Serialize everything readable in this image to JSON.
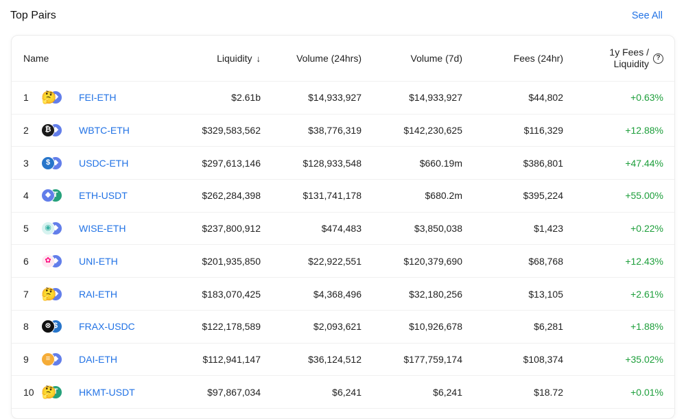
{
  "header": {
    "title": "Top Pairs",
    "see_all": "See All"
  },
  "columns": {
    "name": "Name",
    "liquidity": "Liquidity",
    "sort_arrow": "↓",
    "volume_24h": "Volume (24hrs)",
    "volume_7d": "Volume (7d)",
    "fees_24h": "Fees (24hr)",
    "fees_liq_line1": "1y Fees /",
    "fees_liq_line2": "Liquidity",
    "help_glyph": "?"
  },
  "rows": [
    {
      "index": "1",
      "pair": "FEI-ETH",
      "liquidity": "$2.61b",
      "volume_24h": "$14,933,927",
      "volume_7d": "$14,933,927",
      "fees_24h": "$44,802",
      "fees_liq": "+0.63%",
      "icon_a": "thinking-emoji-icon",
      "icon_b": "eth-icon"
    },
    {
      "index": "2",
      "pair": "WBTC-ETH",
      "liquidity": "$329,583,562",
      "volume_24h": "$38,776,319",
      "volume_7d": "$142,230,625",
      "fees_24h": "$116,329",
      "fees_liq": "+12.88%",
      "icon_a": "wbtc-icon",
      "icon_b": "eth-icon"
    },
    {
      "index": "3",
      "pair": "USDC-ETH",
      "liquidity": "$297,613,146",
      "volume_24h": "$128,933,548",
      "volume_7d": "$660.19m",
      "fees_24h": "$386,801",
      "fees_liq": "+47.44%",
      "icon_a": "usdc-icon",
      "icon_b": "eth-icon"
    },
    {
      "index": "4",
      "pair": "ETH-USDT",
      "liquidity": "$262,284,398",
      "volume_24h": "$131,741,178",
      "volume_7d": "$680.2m",
      "fees_24h": "$395,224",
      "fees_liq": "+55.00%",
      "icon_a": "eth-icon",
      "icon_b": "usdt-icon"
    },
    {
      "index": "5",
      "pair": "WISE-ETH",
      "liquidity": "$237,800,912",
      "volume_24h": "$474,483",
      "volume_7d": "$3,850,038",
      "fees_24h": "$1,423",
      "fees_liq": "+0.22%",
      "icon_a": "wise-icon",
      "icon_b": "eth-icon"
    },
    {
      "index": "6",
      "pair": "UNI-ETH",
      "liquidity": "$201,935,850",
      "volume_24h": "$22,922,551",
      "volume_7d": "$120,379,690",
      "fees_24h": "$68,768",
      "fees_liq": "+12.43%",
      "icon_a": "uni-icon",
      "icon_b": "eth-icon"
    },
    {
      "index": "7",
      "pair": "RAI-ETH",
      "liquidity": "$183,070,425",
      "volume_24h": "$4,368,496",
      "volume_7d": "$32,180,256",
      "fees_24h": "$13,105",
      "fees_liq": "+2.61%",
      "icon_a": "thinking-emoji-icon",
      "icon_b": "eth-icon"
    },
    {
      "index": "8",
      "pair": "FRAX-USDC",
      "liquidity": "$122,178,589",
      "volume_24h": "$2,093,621",
      "volume_7d": "$10,926,678",
      "fees_24h": "$6,281",
      "fees_liq": "+1.88%",
      "icon_a": "frax-icon",
      "icon_b": "usdc-icon"
    },
    {
      "index": "9",
      "pair": "DAI-ETH",
      "liquidity": "$112,941,147",
      "volume_24h": "$36,124,512",
      "volume_7d": "$177,759,174",
      "fees_24h": "$108,374",
      "fees_liq": "+35.02%",
      "icon_a": "dai-icon",
      "icon_b": "eth-icon"
    },
    {
      "index": "10",
      "pair": "HKMT-USDT",
      "liquidity": "$97,867,034",
      "volume_24h": "$6,241",
      "volume_7d": "$6,241",
      "fees_24h": "$18.72",
      "fees_liq": "+0.01%",
      "icon_a": "thinking-emoji-icon",
      "icon_b": "usdt-icon"
    }
  ],
  "colors": {
    "link": "#2172e5",
    "positive": "#1c9e3a",
    "eth": "#627eea",
    "usdt": "#26a17b",
    "usdc": "#2775ca",
    "dai": "#f5ac37",
    "uni": "#ff007a"
  }
}
